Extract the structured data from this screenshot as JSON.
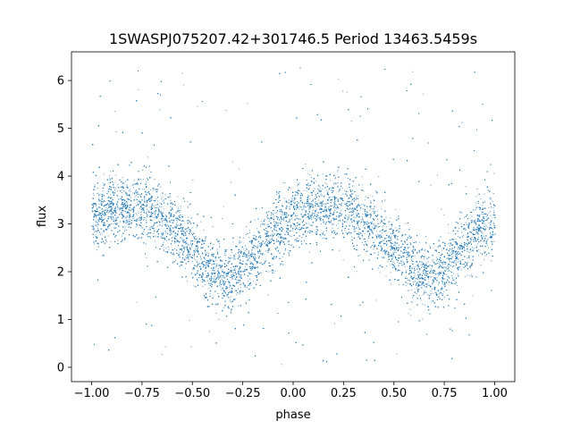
{
  "chart_data": {
    "type": "scatter",
    "title": "1SWASPJ075207.42+301746.5 Period 13463.5459s",
    "xlabel": "phase",
    "ylabel": "flux",
    "xlim": [
      -1.1,
      1.1
    ],
    "ylim": [
      -0.3,
      6.6
    ],
    "xticks": [
      -1.0,
      -0.75,
      -0.5,
      -0.25,
      0.0,
      0.25,
      0.5,
      0.75,
      1.0
    ],
    "xtick_labels": [
      "−1.00",
      "−0.75",
      "−0.50",
      "−0.25",
      "0.00",
      "0.25",
      "0.50",
      "0.75",
      "1.00"
    ],
    "yticks": [
      0,
      1,
      2,
      3,
      4,
      5,
      6
    ],
    "ytick_labels": [
      "0",
      "1",
      "2",
      "3",
      "4",
      "5",
      "6"
    ],
    "grid": false,
    "marker_color": "#1f77b4",
    "series": [
      {
        "trend_x": [
          -1.0,
          -0.9,
          -0.8,
          -0.7,
          -0.6,
          -0.5,
          -0.4,
          -0.3,
          -0.2,
          -0.1,
          0.0,
          0.1,
          0.2,
          0.3,
          0.4,
          0.5,
          0.6,
          0.7,
          0.8,
          0.9,
          1.0
        ],
        "trend_y": [
          3.1,
          3.35,
          3.4,
          3.3,
          2.95,
          2.45,
          2.0,
          1.85,
          2.3,
          2.85,
          3.15,
          3.3,
          3.4,
          3.3,
          2.95,
          2.45,
          2.0,
          1.85,
          2.3,
          2.85,
          3.1
        ],
        "scatter_sigma": 0.35
      }
    ]
  }
}
